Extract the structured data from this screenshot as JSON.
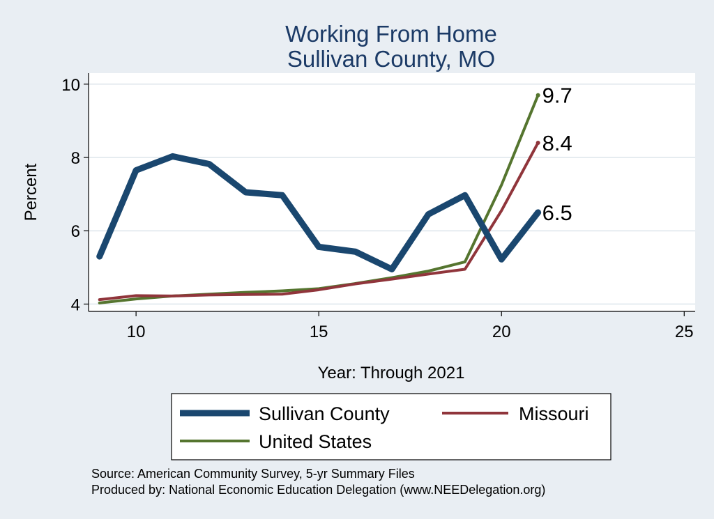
{
  "chart_data": {
    "type": "line",
    "title": [
      "Working From Home",
      "Sullivan County, MO"
    ],
    "xlabel": "Year: Through 2021",
    "ylabel": "Percent",
    "xlim": [
      8.7,
      25.3
    ],
    "ylim": [
      3.8,
      10.3
    ],
    "xticks": [
      10,
      15,
      20,
      25
    ],
    "yticks": [
      4,
      6,
      8,
      10
    ],
    "grid": true,
    "legend_placement": "bottom",
    "series": [
      {
        "name": "Sullivan County",
        "color": "#1a476f",
        "x": [
          9,
          10,
          11,
          12,
          13,
          14,
          15,
          16,
          17,
          18,
          19,
          20,
          21
        ],
        "y": [
          5.3,
          7.65,
          8.03,
          7.82,
          7.05,
          6.97,
          5.56,
          5.43,
          4.95,
          6.45,
          6.97,
          5.22,
          6.5
        ],
        "end_label": "6.5"
      },
      {
        "name": "Missouri",
        "color": "#90353b",
        "x": [
          9,
          10,
          11,
          12,
          13,
          14,
          15,
          16,
          17,
          18,
          19,
          20,
          21
        ],
        "y": [
          4.12,
          4.23,
          4.22,
          4.25,
          4.26,
          4.27,
          4.39,
          4.55,
          4.68,
          4.82,
          4.95,
          6.55,
          8.4
        ],
        "end_label": "8.4"
      },
      {
        "name": "United States",
        "color": "#55752f",
        "x": [
          9,
          10,
          11,
          12,
          13,
          14,
          15,
          16,
          17,
          18,
          19,
          20,
          21
        ],
        "y": [
          4.03,
          4.14,
          4.22,
          4.27,
          4.32,
          4.36,
          4.42,
          4.56,
          4.72,
          4.9,
          5.15,
          7.25,
          9.7
        ],
        "end_label": "9.7"
      }
    ]
  },
  "notes": [
    "Source: American Community Survey, 5-yr Summary Files",
    "Produced by: National Economic Education Delegation (www.NEEDelegation.org)"
  ]
}
